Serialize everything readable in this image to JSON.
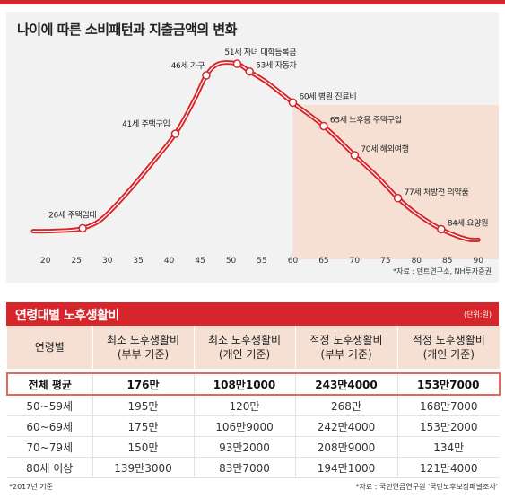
{
  "chart_data": {
    "type": "line",
    "title": "나이에 따른 소비패턴과 지출금액의 변화",
    "source": "*자료 : 덴트연구소, NH투자증권",
    "x_ticks": [
      "20",
      "25",
      "30",
      "35",
      "40",
      "45",
      "50",
      "55",
      "60",
      "65",
      "70",
      "75",
      "80",
      "85",
      "90"
    ],
    "xlim": [
      18,
      92
    ],
    "ylim": [
      0,
      100
    ],
    "shaded_from_x": 60,
    "colors": {
      "line": "#d6262b",
      "shade": "#f6e0d4",
      "marker_fill": "#ffffff"
    },
    "points": [
      {
        "x": 18,
        "y": 8
      },
      {
        "x": 20,
        "y": 8
      },
      {
        "x": 24,
        "y": 8.5
      },
      {
        "x": 26,
        "y": 9.5
      },
      {
        "x": 29,
        "y": 14
      },
      {
        "x": 33,
        "y": 27
      },
      {
        "x": 37,
        "y": 42
      },
      {
        "x": 41,
        "y": 58
      },
      {
        "x": 44,
        "y": 75
      },
      {
        "x": 46,
        "y": 88
      },
      {
        "x": 48,
        "y": 94
      },
      {
        "x": 51,
        "y": 94
      },
      {
        "x": 53,
        "y": 90
      },
      {
        "x": 56,
        "y": 84
      },
      {
        "x": 60,
        "y": 74
      },
      {
        "x": 65,
        "y": 62
      },
      {
        "x": 70,
        "y": 47
      },
      {
        "x": 74,
        "y": 35
      },
      {
        "x": 77,
        "y": 25
      },
      {
        "x": 80,
        "y": 17
      },
      {
        "x": 84,
        "y": 9
      },
      {
        "x": 88,
        "y": 4
      },
      {
        "x": 90,
        "y": 3.5
      }
    ],
    "annotations": [
      {
        "x": 26,
        "y": 9.5,
        "label": "26세 주택임대"
      },
      {
        "x": 41,
        "y": 58,
        "label": "41세 주택구입"
      },
      {
        "x": 46,
        "y": 88,
        "label": "46세 가구"
      },
      {
        "x": 51,
        "y": 94,
        "label": "51세 자녀 대학등록금"
      },
      {
        "x": 53,
        "y": 90,
        "label": "53세 자동차"
      },
      {
        "x": 60,
        "y": 74,
        "label": "60세 병원 진료비"
      },
      {
        "x": 65,
        "y": 62,
        "label": "65세 노후용 주택구입"
      },
      {
        "x": 70,
        "y": 47,
        "label": "70세 해외여행"
      },
      {
        "x": 77,
        "y": 25,
        "label": "77세 처방전 의약품"
      },
      {
        "x": 84,
        "y": 9,
        "label": "84세 요양원"
      }
    ]
  },
  "table": {
    "title": "연령대별 노후생활비",
    "unit": "(단위:원)",
    "headers": [
      {
        "l1": "연령별",
        "l2": ""
      },
      {
        "l1": "최소 노후생활비",
        "l2": "(부부 기준)"
      },
      {
        "l1": "최소 노후생활비",
        "l2": "(개인 기준)"
      },
      {
        "l1": "적정 노후생활비",
        "l2": "(부부 기준)"
      },
      {
        "l1": "적정 노후생활비",
        "l2": "(개인 기준)"
      }
    ],
    "rows": [
      [
        "전체 평균",
        "176만",
        "108만1000",
        "243만4000",
        "153만7000"
      ],
      [
        "50~59세",
        "195만",
        "120만",
        "268만",
        "168만7000"
      ],
      [
        "60~69세",
        "175만",
        "106만9000",
        "242만4000",
        "153만2000"
      ],
      [
        "70~79세",
        "150만",
        "93만2000",
        "208만9000",
        "134만"
      ],
      [
        "80세 이상",
        "139만3000",
        "83만7000",
        "194만1000",
        "121만4000"
      ]
    ],
    "footnote_left": "*2017년 기준",
    "footnote_right": "*자료 : 국민연금연구원 '국민노후보장패널조사'"
  }
}
